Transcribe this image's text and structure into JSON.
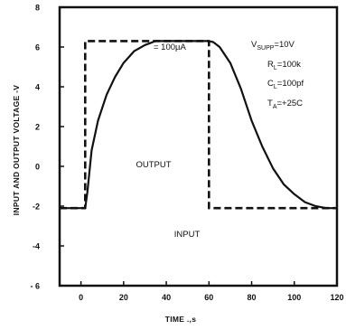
{
  "chart_data": {
    "type": "line",
    "title": "",
    "xlabel": "TIME    .,s",
    "ylabel": "INPUT AND OUTPUT VOLTAGE -V",
    "xlim": [
      -10,
      120
    ],
    "ylim": [
      -6,
      8
    ],
    "x_ticks": [
      0,
      20,
      40,
      60,
      80,
      100,
      120
    ],
    "y_ticks": [
      8,
      6,
      4,
      2,
      0,
      -2,
      -4,
      -6
    ],
    "x_tick_labels": [
      "0",
      "20",
      "40",
      "60",
      "80",
      "100",
      "120"
    ],
    "y_tick_labels": [
      "8",
      "6",
      "4",
      "2",
      "0",
      "-2",
      "-4",
      "- 6"
    ],
    "grid": false,
    "series": [
      {
        "name": "INPUT",
        "style": "dashed",
        "x": [
          -10,
          2,
          2,
          60,
          60,
          120
        ],
        "y": [
          -2.1,
          -2.1,
          6.3,
          6.3,
          -2.1,
          -2.1
        ]
      },
      {
        "name": "OUTPUT",
        "style": "solid",
        "x": [
          -10,
          2,
          3,
          5,
          8,
          12,
          16,
          20,
          25,
          30,
          35,
          40,
          50,
          60,
          62,
          65,
          70,
          75,
          80,
          85,
          90,
          95,
          100,
          105,
          110,
          115,
          120
        ],
        "y": [
          -2.1,
          -2.1,
          -1.3,
          0.8,
          2.3,
          3.6,
          4.5,
          5.2,
          5.8,
          6.1,
          6.3,
          6.3,
          6.3,
          6.3,
          6.25,
          6.0,
          5.2,
          3.9,
          2.3,
          1.0,
          -0.1,
          -0.9,
          -1.4,
          -1.8,
          -2.0,
          -2.1,
          -2.1
        ]
      }
    ],
    "annotations": {
      "current_label": "= 100µA",
      "output_label": "OUTPUT",
      "input_label": "INPUT"
    },
    "conditions": {
      "supply_main": "V",
      "supply_sub": "SUPP",
      "supply_value": "=10V",
      "rl_main": "R",
      "rl_sub": "L",
      "rl_value": "=100k",
      "cl_main": "C",
      "cl_sub": "L",
      "cl_value": "=100pf",
      "ta_main": "T",
      "ta_sub": "A",
      "ta_value": "=+25C"
    }
  }
}
